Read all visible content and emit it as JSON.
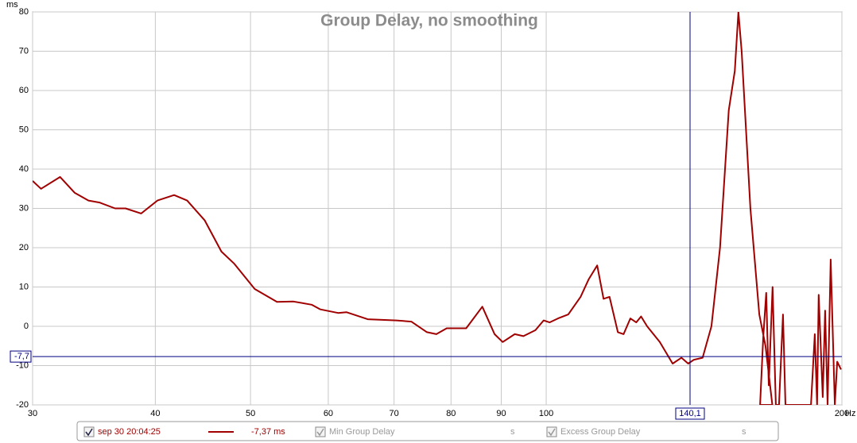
{
  "chart_data": {
    "type": "line",
    "title": "Group Delay, no smoothing",
    "y_label": "ms",
    "x_label": "Hz",
    "log_x": true,
    "grid": true,
    "xlim": [
      30,
      200
    ],
    "ylim": [
      -20,
      80
    ],
    "xticks": [
      30,
      40,
      50,
      60,
      70,
      80,
      90,
      100,
      200
    ],
    "yticks": [
      -20,
      -10,
      0,
      10,
      20,
      30,
      40,
      50,
      60,
      70,
      80
    ],
    "series": [
      {
        "name": "sep 30 20:04:25",
        "color": "#a00000",
        "x": [
          30,
          30.6,
          32.0,
          33.1,
          34.2,
          35.1,
          36.4,
          37.3,
          38.7,
          40.2,
          41.8,
          43.1,
          44.9,
          46.7,
          48.1,
          50.5,
          53.2,
          55.3,
          57.7,
          58.9,
          61.4,
          62.6,
          65.8,
          70.4,
          72.9,
          75.6,
          77.3,
          79.2,
          82.9,
          86.1,
          88.6,
          90.3,
          92.9,
          94.8,
          97.5,
          99.4,
          100.8,
          102.8,
          105.3,
          108.4,
          110.5,
          112.7,
          114.4,
          116,
          118.3,
          119.9,
          121.8,
          123.5,
          124.9,
          126.7,
          130.5,
          134.5,
          137.3,
          139.5,
          141.4,
          144.3,
          147.3,
          150.3,
          153.4,
          155.6,
          156.9,
          158.1,
          161.4,
          164.8,
          167.2,
          169.9,
          165.1,
          166.3,
          167.5,
          168.5,
          170,
          171.3,
          172.6,
          174.2,
          175.2,
          186,
          187.7,
          188.7,
          189.4,
          191.2,
          192.3,
          193.4,
          194.8,
          196.7,
          197.8,
          199.6
        ],
        "values": [
          37,
          35,
          38,
          34,
          32,
          31.5,
          30,
          30,
          28.7,
          32,
          33.4,
          32,
          27,
          19,
          16,
          9.5,
          6.2,
          6.3,
          5.5,
          4.3,
          3.4,
          3.6,
          1.8,
          1.5,
          1.2,
          -1.5,
          -2,
          -0.5,
          -0.5,
          5,
          -2,
          -4,
          -2,
          -2.5,
          -1,
          1.5,
          1,
          2,
          3,
          7.5,
          12,
          15.5,
          7,
          7.5,
          -1.5,
          -2,
          2,
          1,
          2.5,
          0,
          -4,
          -9.5,
          -8,
          -9.5,
          -8.5,
          -8,
          0,
          20,
          55,
          65,
          80,
          70,
          30,
          3,
          -5,
          -20,
          -20,
          -3,
          8.5,
          -15,
          10,
          -20,
          -20,
          3,
          -20,
          -20,
          -2,
          -20,
          8,
          -18,
          4,
          -20,
          17,
          -20,
          -9,
          -11
        ]
      }
    ],
    "cursor": {
      "x": {
        "value": 140.1,
        "label": "140,1"
      },
      "y": {
        "value": -7.7,
        "label": "-7,7"
      }
    },
    "legend": [
      {
        "name": "sep 30 20:04:25",
        "readout": "-7,37 ms"
      },
      {
        "name": "Min Group Delay",
        "readout": "s"
      },
      {
        "name": "Excess Group Delay",
        "readout": "s"
      }
    ]
  }
}
